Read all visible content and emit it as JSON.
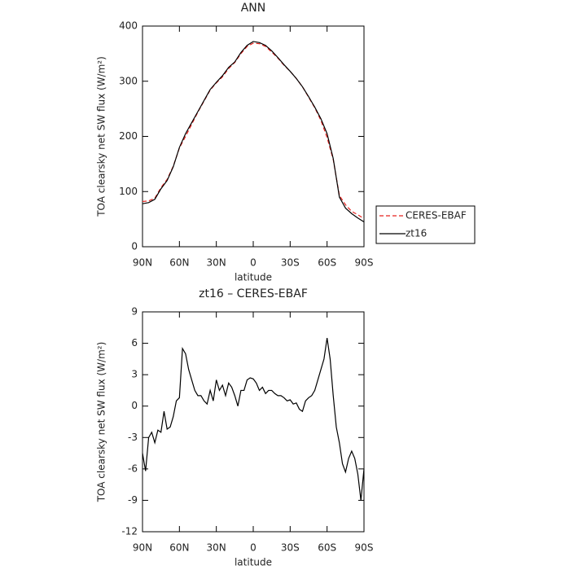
{
  "chart_data": [
    {
      "type": "line",
      "title": "ANN",
      "xlabel": "latitude",
      "ylabel": "TOA clearsky net SW flux (W/m²)",
      "x": [
        90,
        85,
        80,
        75,
        70,
        65,
        60,
        55,
        50,
        45,
        40,
        35,
        30,
        25,
        20,
        15,
        10,
        5,
        0,
        -5,
        -10,
        -15,
        -20,
        -25,
        -30,
        -35,
        -40,
        -45,
        -50,
        -55,
        -60,
        -65,
        -70,
        -75,
        -80,
        -85,
        -90
      ],
      "series": [
        {
          "name": "CERES-EBAF",
          "color": "#e8221e",
          "dash": true,
          "values": [
            82,
            83,
            88,
            107,
            122,
            146,
            179,
            200,
            222,
            244,
            264,
            284,
            297,
            308,
            323,
            334,
            350,
            363,
            369,
            368,
            363,
            353,
            342,
            329,
            318,
            305,
            290,
            271,
            252,
            229,
            198,
            158,
            93,
            76,
            64,
            58,
            51
          ]
        },
        {
          "name": "zt16",
          "color": "#000000",
          "dash": false,
          "values": [
            78,
            80,
            86,
            105,
            120,
            145,
            180,
            205,
            225,
            245,
            265,
            285,
            298,
            310,
            325,
            335,
            352,
            365,
            372,
            370,
            365,
            355,
            343,
            330,
            318,
            305,
            290,
            272,
            253,
            232,
            205,
            160,
            90,
            70,
            60,
            52,
            45
          ]
        }
      ],
      "xlim": [
        90,
        -90
      ],
      "xticks": [
        {
          "value": 90,
          "label": "90N"
        },
        {
          "value": 60,
          "label": "60N"
        },
        {
          "value": 30,
          "label": "30N"
        },
        0,
        {
          "value": -30,
          "label": "30S"
        },
        {
          "value": -60,
          "label": "60S"
        },
        {
          "value": -90,
          "label": "90S"
        }
      ],
      "ylim": [
        0,
        400
      ],
      "yticks": [
        0,
        100,
        200,
        300,
        400
      ],
      "legend": "outside-right"
    },
    {
      "type": "line",
      "title": "zt16 – CERES-EBAF",
      "xlabel": "latitude",
      "ylabel": "TOA clearsky net SW flux (W/m²)",
      "x": [
        90,
        87.5,
        85,
        82.5,
        80,
        77.5,
        75,
        72.5,
        70,
        67.5,
        65,
        62.5,
        60,
        57.5,
        55,
        52.5,
        50,
        47.5,
        45,
        42.5,
        40,
        37.5,
        35,
        32.5,
        30,
        27.5,
        25,
        22.5,
        20,
        17.5,
        15,
        12.5,
        10,
        7.5,
        5,
        2.5,
        0,
        -2.5,
        -5,
        -7.5,
        -10,
        -12.5,
        -15,
        -17.5,
        -20,
        -22.5,
        -25,
        -27.5,
        -30,
        -32.5,
        -35,
        -37.5,
        -40,
        -42.5,
        -45,
        -47.5,
        -50,
        -52.5,
        -55,
        -57.5,
        -60,
        -62.5,
        -65,
        -67.5,
        -70,
        -72.5,
        -75,
        -77.5,
        -80,
        -82.5,
        -85,
        -87.5,
        -90
      ],
      "series": [
        {
          "name": "zt16",
          "color": "#000000",
          "dash": false,
          "values": [
            -4.5,
            -6.2,
            -3,
            -2.5,
            -3.5,
            -2.3,
            -2.5,
            -0.5,
            -2.2,
            -2,
            -1,
            0.5,
            0.8,
            5.5,
            5,
            3.5,
            2.5,
            1.5,
            1,
            1,
            0.5,
            0.2,
            1.5,
            0.5,
            2.5,
            1.5,
            2,
            1,
            2.2,
            1.8,
            1,
            0,
            1.5,
            1.5,
            2.5,
            2.7,
            2.6,
            2.2,
            1.5,
            1.8,
            1.2,
            1.5,
            1.5,
            1.2,
            1,
            1,
            0.8,
            0.5,
            0.6,
            0.2,
            0.3,
            -0.3,
            -0.5,
            0.5,
            0.8,
            1,
            1.5,
            2.5,
            3.5,
            4.5,
            6.5,
            4.5,
            1,
            -2,
            -3.5,
            -5.5,
            -6.3,
            -5,
            -4.3,
            -5,
            -6.5,
            -9,
            -6
          ]
        }
      ],
      "xlim": [
        90,
        -90
      ],
      "xticks": [
        {
          "value": 90,
          "label": "90N"
        },
        {
          "value": 60,
          "label": "60N"
        },
        {
          "value": 30,
          "label": "30N"
        },
        0,
        {
          "value": -30,
          "label": "30S"
        },
        {
          "value": -60,
          "label": "60S"
        },
        {
          "value": -90,
          "label": "90S"
        }
      ],
      "ylim": [
        -12,
        9
      ],
      "yticks": [
        -12,
        -9,
        -6,
        -3,
        0,
        3,
        6,
        9
      ]
    }
  ]
}
